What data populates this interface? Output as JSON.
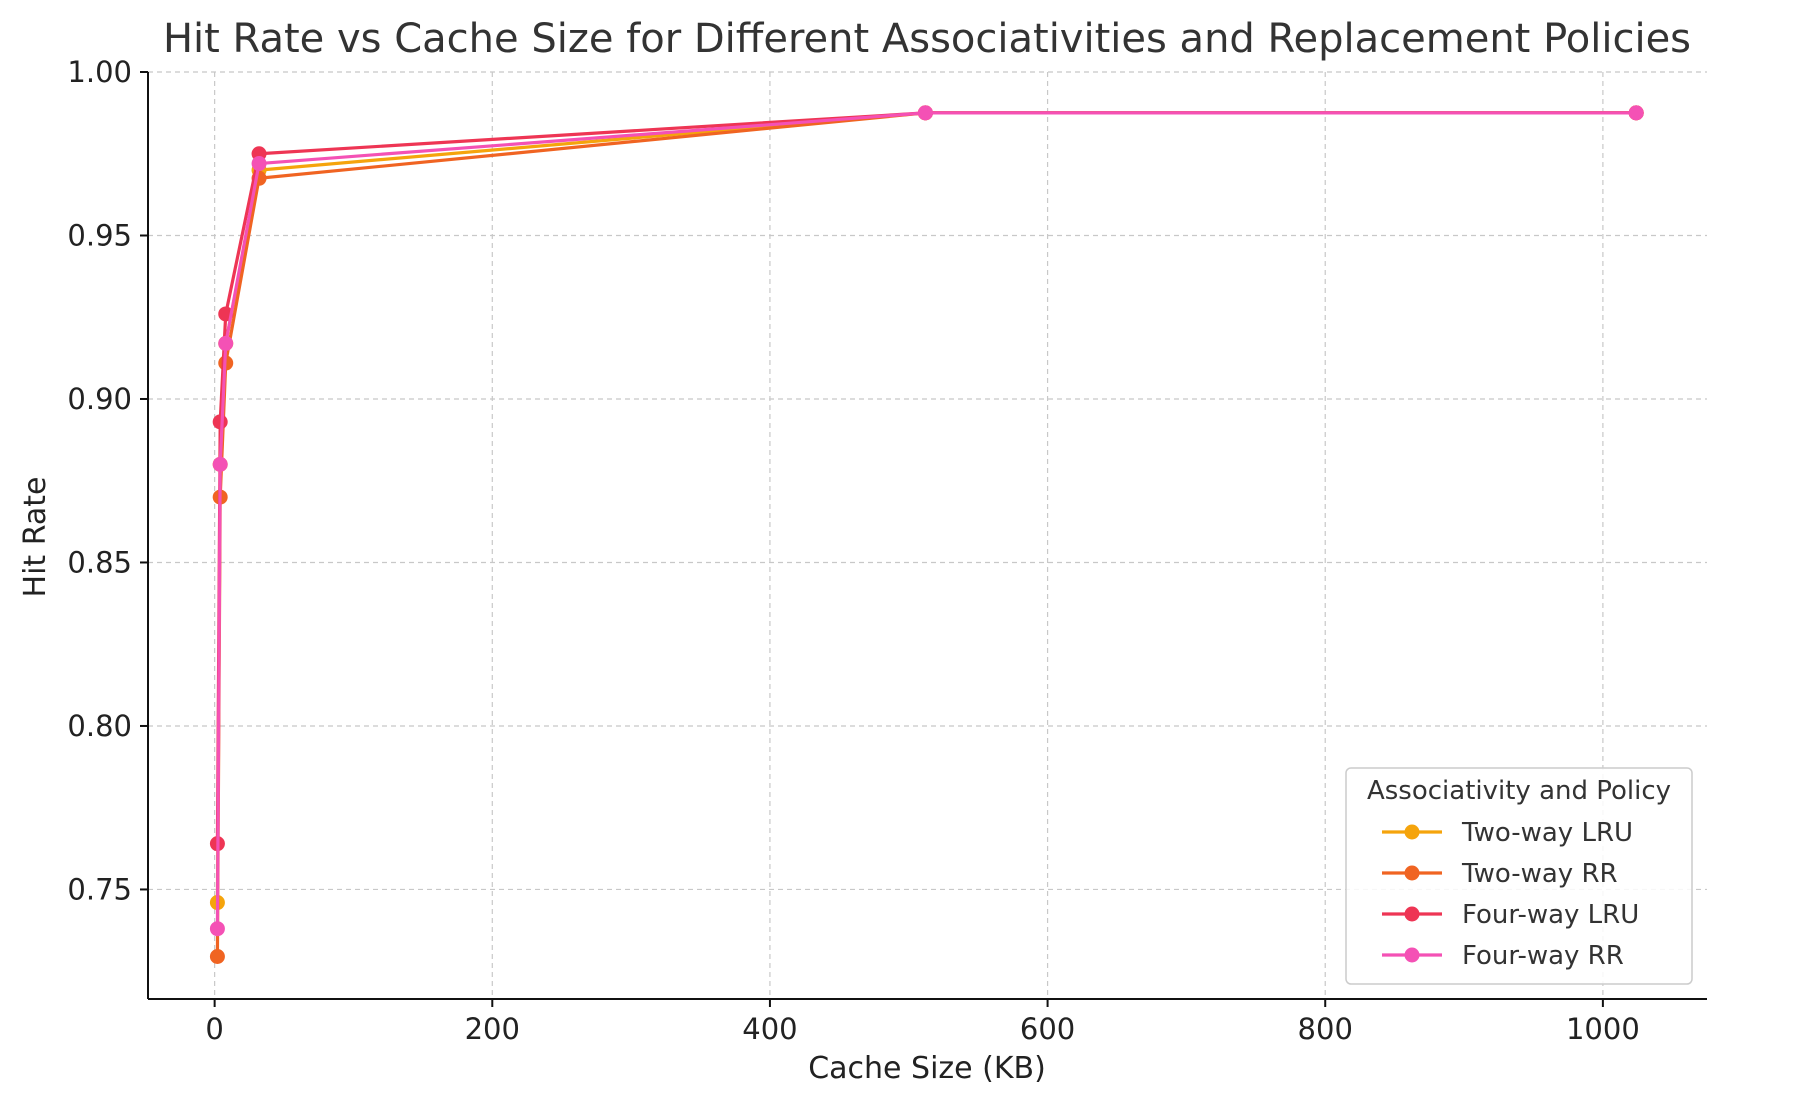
{
  "chart_data": {
    "type": "line",
    "title": "Hit Rate vs Cache Size for Different Associativities and Replacement Policies",
    "xlabel": "Cache Size (KB)",
    "ylabel": "Hit Rate",
    "xlim": [
      -48,
      1075
    ],
    "ylim": [
      0.7165,
      1.0
    ],
    "xticks": [
      0,
      200,
      400,
      600,
      800,
      1000
    ],
    "yticks": [
      0.75,
      0.8,
      0.85,
      0.9,
      0.95,
      1.0
    ],
    "xtick_labels": [
      "0",
      "200",
      "400",
      "600",
      "800",
      "1000"
    ],
    "ytick_labels": [
      "0.75",
      "0.80",
      "0.85",
      "0.90",
      "0.95",
      "1.00"
    ],
    "grid": true,
    "legend": {
      "title": "Associativity and Policy",
      "placement": "lower-right"
    },
    "series": [
      {
        "name": "Two-way LRU",
        "color": "#f5a40c",
        "x": [
          2,
          4,
          8,
          32,
          512,
          1024
        ],
        "y": [
          0.746,
          0.88,
          0.917,
          0.97,
          0.9875,
          0.9875
        ]
      },
      {
        "name": "Two-way RR",
        "color": "#f06422",
        "x": [
          2,
          4,
          8,
          32,
          512,
          1024
        ],
        "y": [
          0.7295,
          0.87,
          0.911,
          0.9675,
          0.9875,
          0.9875
        ]
      },
      {
        "name": "Four-way LRU",
        "color": "#ee3554",
        "x": [
          2,
          4,
          8,
          32,
          512,
          1024
        ],
        "y": [
          0.764,
          0.893,
          0.926,
          0.975,
          0.9875,
          0.9875
        ]
      },
      {
        "name": "Four-way RR",
        "color": "#f451b5",
        "x": [
          2,
          4,
          8,
          32,
          512,
          1024
        ],
        "y": [
          0.738,
          0.88,
          0.917,
          0.972,
          0.9875,
          0.9875
        ]
      }
    ]
  }
}
